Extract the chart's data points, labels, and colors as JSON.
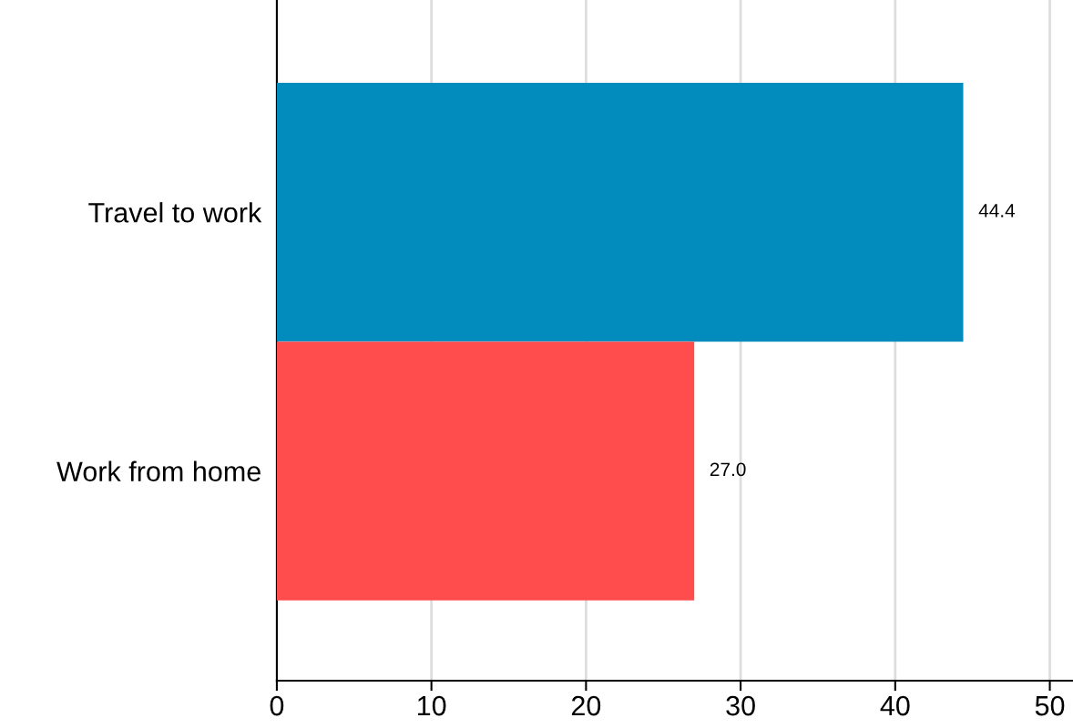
{
  "chart_data": {
    "type": "bar",
    "orientation": "horizontal",
    "categories": [
      "Travel to work",
      "Work from home"
    ],
    "values": [
      44.4,
      27.0
    ],
    "colors": [
      "#028bbd",
      "#ff4c4c"
    ],
    "value_labels": [
      "44.4",
      "27.0"
    ],
    "xlim": [
      0,
      51.5
    ],
    "xticks": [
      0,
      10,
      20,
      30,
      40,
      50
    ],
    "grid": "x",
    "legend": false
  }
}
